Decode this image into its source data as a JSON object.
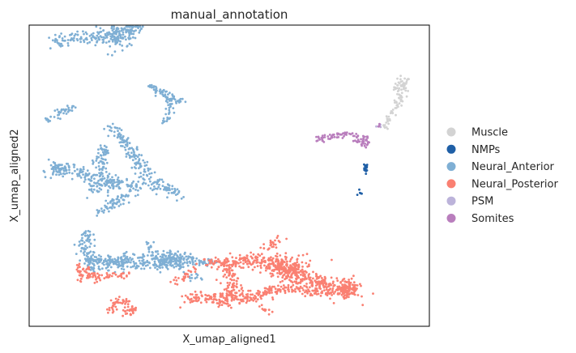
{
  "chart_data": {
    "type": "scatter",
    "title": "manual_annotation",
    "xlabel": "X_umap_aligned1",
    "ylabel": "X_umap_aligned2",
    "xlim": [
      0,
      100
    ],
    "ylim": [
      0,
      100
    ],
    "grid": false,
    "ticks": false,
    "legend_position": "right",
    "series": [
      {
        "name": "Muscle",
        "color": "#d3d3d3",
        "clusters": [
          {
            "cx": 93.2,
            "cy": 79.5,
            "sx": 1.0,
            "sy": 1.8,
            "n": 45
          },
          {
            "path": [
              [
                88.5,
                65.8
              ],
              [
                90.2,
                69.8
              ],
              [
                91.8,
                73.4
              ],
              [
                93.0,
                76.5
              ]
            ],
            "spread": 0.5,
            "n": 45
          }
        ]
      },
      {
        "name": "NMPs",
        "color": "#1f5fa6",
        "clusters": [
          {
            "path": [
              [
                84.1,
                51.1
              ],
              [
                84.1,
                53.9
              ]
            ],
            "spread": 0.25,
            "n": 18
          },
          {
            "cx": 82.7,
            "cy": 44.5,
            "sx": 0.3,
            "sy": 0.5,
            "n": 5
          }
        ]
      },
      {
        "name": "Neural_Anterior",
        "color": "#7fafd4",
        "clusters": [
          {
            "path": [
              [
                6.5,
                94.7
              ],
              [
                12.0,
                96.0
              ],
              [
                17.5,
                95.7
              ],
              [
                21.0,
                96.5
              ],
              [
                24.0,
                98.0
              ],
              [
                28.0,
                99.8
              ]
            ],
            "spread": 1.0,
            "n": 170
          },
          {
            "cx": 22.0,
            "cy": 96.0,
            "sx": 2.2,
            "sy": 2.0,
            "n": 90
          },
          {
            "path": [
              [
                30.0,
                79.5
              ],
              [
                32.5,
                78.5
              ],
              [
                34.5,
                76.5
              ],
              [
                38.0,
                74.3
              ]
            ],
            "spread": 0.6,
            "n": 70
          },
          {
            "path": [
              [
                35.0,
                75.5
              ],
              [
                34.8,
                71.0
              ],
              [
                33.8,
                68.0
              ]
            ],
            "spread": 0.5,
            "n": 30
          },
          {
            "path": [
              [
                4.5,
                68.0
              ],
              [
                7.0,
                70.5
              ],
              [
                10.5,
                72.8
              ]
            ],
            "spread": 0.6,
            "n": 40
          },
          {
            "path": [
              [
                20.0,
                66.0
              ],
              [
                23.0,
                63.0
              ],
              [
                25.0,
                59.0
              ],
              [
                27.0,
                55.0
              ],
              [
                29.5,
                50.0
              ],
              [
                32.0,
                47.0
              ],
              [
                35.0,
                45.0
              ],
              [
                37.0,
                44.0
              ]
            ],
            "spread": 1.0,
            "n": 190
          },
          {
            "path": [
              [
                19.0,
                60.0
              ],
              [
                17.5,
                55.0
              ],
              [
                19.0,
                49.5
              ],
              [
                20.5,
                46.0
              ]
            ],
            "spread": 1.0,
            "n": 90
          },
          {
            "path": [
              [
                6.0,
                53.5
              ],
              [
                10.0,
                52.0
              ],
              [
                14.0,
                50.0
              ],
              [
                17.0,
                48.0
              ],
              [
                22.0,
                47.5
              ],
              [
                26.0,
                47.0
              ],
              [
                28.0,
                45.5
              ]
            ],
            "spread": 1.1,
            "n": 160
          },
          {
            "cx": 7.0,
            "cy": 52.0,
            "sx": 1.3,
            "sy": 1.2,
            "n": 40
          },
          {
            "path": [
              [
                17.5,
                38.0
              ],
              [
                19.5,
                39.5
              ],
              [
                21.5,
                41.5
              ],
              [
                24.0,
                43.0
              ]
            ],
            "spread": 0.8,
            "n": 60
          },
          {
            "cx": 16.0,
            "cy": 45.0,
            "sx": 0.8,
            "sy": 1.0,
            "n": 15
          },
          {
            "path": [
              [
                14.5,
                31.0
              ],
              [
                14.5,
                28.0
              ],
              [
                14.0,
                25.0
              ],
              [
                15.0,
                22.0
              ],
              [
                15.5,
                18.5
              ]
            ],
            "spread": 0.9,
            "n": 90
          },
          {
            "path": [
              [
                15.0,
                22.0
              ],
              [
                20.0,
                21.0
              ],
              [
                25.0,
                21.5
              ],
              [
                30.0,
                21.0
              ],
              [
                34.0,
                22.5
              ],
              [
                37.0,
                22.5
              ],
              [
                39.0,
                21.0
              ]
            ],
            "spread": 1.3,
            "n": 280
          },
          {
            "cx": 35.0,
            "cy": 21.5,
            "sx": 2.5,
            "sy": 1.4,
            "n": 100
          },
          {
            "path": [
              [
                29.5,
                28.0
              ],
              [
                31.0,
                25.0
              ],
              [
                32.0,
                22.5
              ]
            ],
            "spread": 0.6,
            "n": 20
          },
          {
            "path": [
              [
                40.0,
                23.5
              ],
              [
                42.0,
                21.5
              ],
              [
                44.5,
                21.0
              ],
              [
                46.0,
                22.0
              ]
            ],
            "spread": 0.6,
            "n": 40
          },
          {
            "cx": 41.0,
            "cy": 16.0,
            "sx": 1.2,
            "sy": 1.0,
            "n": 12
          }
        ]
      },
      {
        "name": "Neural_Posterior",
        "color": "#fa8072",
        "clusters": [
          {
            "path": [
              [
                12.5,
                20.5
              ],
              [
                14.0,
                18.0
              ],
              [
                15.5,
                16.5
              ],
              [
                17.5,
                16.0
              ],
              [
                21.0,
                17.0
              ],
              [
                25.0,
                17.0
              ]
            ],
            "spread": 0.7,
            "n": 70
          },
          {
            "cx": 13.0,
            "cy": 16.5,
            "sx": 0.6,
            "sy": 1.0,
            "n": 15
          },
          {
            "path": [
              [
                35.5,
                14.5
              ],
              [
                39.0,
                16.5
              ],
              [
                43.0,
                21.0
              ],
              [
                46.0,
                21.5
              ]
            ],
            "spread": 0.6,
            "n": 40
          },
          {
            "path": [
              [
                47.5,
                20.0
              ],
              [
                52.0,
                21.0
              ],
              [
                56.0,
                22.0
              ],
              [
                60.0,
                22.0
              ],
              [
                63.0,
                19.0
              ],
              [
                67.0,
                16.5
              ],
              [
                72.0,
                15.0
              ],
              [
                76.0,
                13.0
              ]
            ],
            "spread": 1.2,
            "n": 330
          },
          {
            "cx": 65.0,
            "cy": 19.5,
            "sx": 2.8,
            "sy": 2.0,
            "n": 150
          },
          {
            "path": [
              [
                59.0,
                26.0
              ],
              [
                61.5,
                28.5
              ],
              [
                63.5,
                29.0
              ]
            ],
            "spread": 0.7,
            "n": 25
          },
          {
            "path": [
              [
                50.0,
                19.0
              ],
              [
                50.5,
                14.0
              ],
              [
                50.0,
                9.0
              ],
              [
                49.0,
                7.0
              ]
            ],
            "spread": 1.2,
            "n": 90
          },
          {
            "path": [
              [
                40.0,
                9.0
              ],
              [
                44.0,
                9.5
              ],
              [
                48.0,
                9.0
              ],
              [
                52.0,
                9.0
              ],
              [
                56.0,
                10.0
              ],
              [
                60.0,
                11.5
              ],
              [
                64.0,
                13.0
              ],
              [
                70.0,
                12.0
              ],
              [
                76.0,
                11.0
              ],
              [
                80.5,
                12.5
              ]
            ],
            "spread": 1.0,
            "n": 330
          },
          {
            "cx": 79.5,
            "cy": 12.5,
            "sx": 1.5,
            "sy": 1.8,
            "n": 110
          },
          {
            "path": [
              [
                58.0,
                6.5
              ],
              [
                60.0,
                4.5
              ]
            ],
            "spread": 0.6,
            "n": 10
          },
          {
            "path": [
              [
                20.0,
                5.0
              ],
              [
                21.5,
                7.5
              ],
              [
                23.5,
                8.5
              ],
              [
                25.5,
                7.0
              ],
              [
                26.0,
                5.0
              ],
              [
                23.0,
                4.5
              ]
            ],
            "spread": 0.6,
            "n": 70
          }
        ]
      },
      {
        "name": "PSM",
        "color": "#bcb3da",
        "clusters": [
          {
            "cx": 87.5,
            "cy": 66.5,
            "sx": 0.4,
            "sy": 0.4,
            "n": 4
          }
        ]
      },
      {
        "name": "Somites",
        "color": "#b97ebd",
        "clusters": [
          {
            "path": [
              [
                72.0,
                62.0
              ],
              [
                74.5,
                62.7
              ],
              [
                77.0,
                63.3
              ],
              [
                79.3,
                64.0
              ]
            ],
            "spread": 0.5,
            "n": 45
          },
          {
            "path": [
              [
                80.5,
                63.5
              ],
              [
                82.5,
                61.5
              ],
              [
                84.0,
                60.0
              ]
            ],
            "spread": 0.5,
            "n": 35
          },
          {
            "path": [
              [
                84.0,
                63.0
              ],
              [
                84.5,
                60.5
              ]
            ],
            "spread": 0.4,
            "n": 15
          },
          {
            "cx": 87.3,
            "cy": 66.8,
            "sx": 0.3,
            "sy": 0.3,
            "n": 3
          }
        ]
      }
    ]
  }
}
